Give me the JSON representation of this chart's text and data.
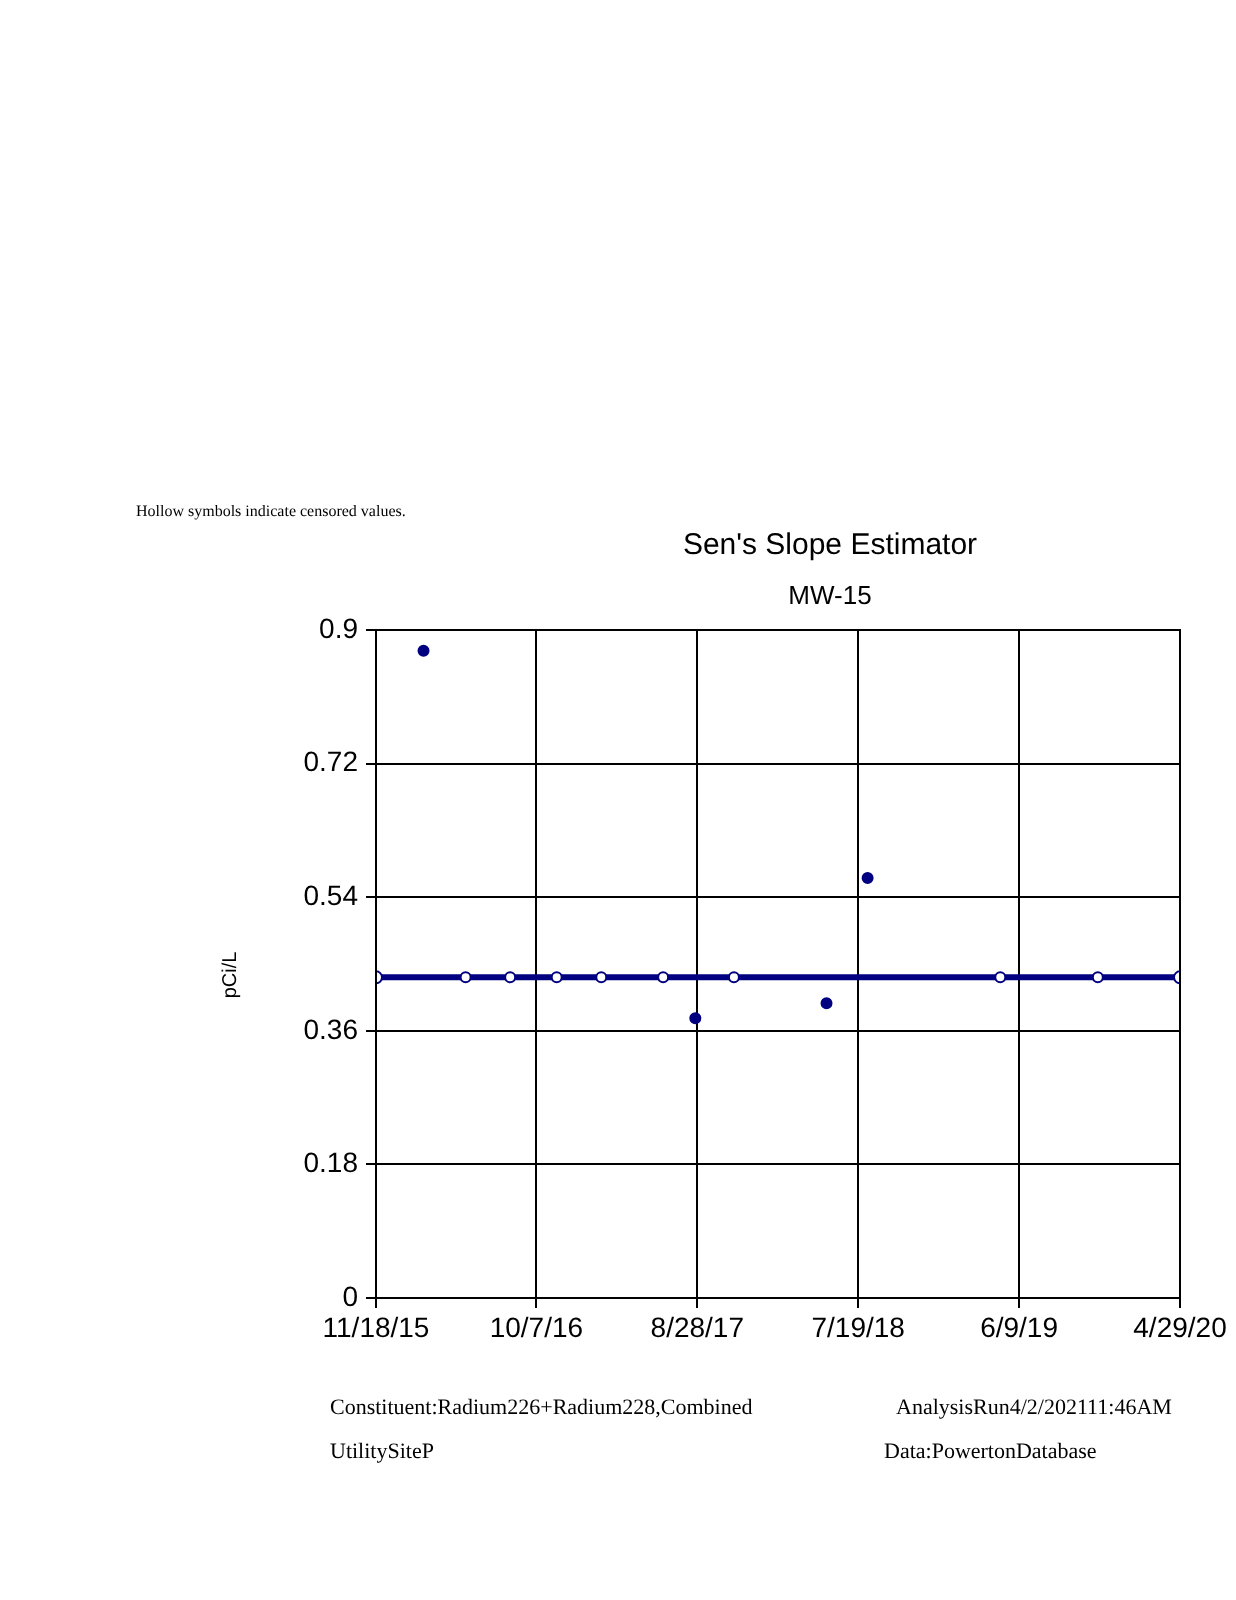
{
  "chart_data": {
    "type": "scatter",
    "title": "Sen's Slope Estimator",
    "subtitle": "MW-15",
    "ylabel": "pCi/L",
    "annotations": [
      "Hollow symbols indicate censored values.",
      "Constituent:Radium226+Radium228,Combined",
      "AnalysisRun4/2/202111:46AM",
      "UtilitySiteP",
      "Data:PowertonDatabase"
    ],
    "xlim": [
      "2015-11-18",
      "2020-04-29"
    ],
    "xticks": [
      {
        "value": "2015-11-18",
        "label": "11/18/15"
      },
      {
        "value": "2016-10-07",
        "label": "10/7/16"
      },
      {
        "value": "2017-08-28",
        "label": "8/28/17"
      },
      {
        "value": "2018-07-19",
        "label": "7/19/18"
      },
      {
        "value": "2019-06-09",
        "label": "6/9/19"
      },
      {
        "value": "2020-04-29",
        "label": "4/29/20"
      }
    ],
    "ylim": [
      0,
      0.9
    ],
    "yticks": [
      0,
      0.18,
      0.36,
      0.54,
      0.72,
      0.9
    ],
    "grid": true,
    "marker": "circle",
    "series": [
      {
        "type": "line",
        "color": "#000080",
        "x": [
          "2015-11-18",
          "2020-04-29"
        ],
        "values": [
          0.432,
          0.432
        ]
      },
      {
        "color": "#000080",
        "x": [
          "2016-02-22",
          "2017-08-24",
          "2018-05-16",
          "2018-08-07"
        ],
        "values": [
          0.872,
          0.377,
          0.397,
          0.566
        ]
      },
      {
        "color": "#ffffff",
        "x": [
          "2016-05-17",
          "2016-08-15",
          "2016-11-17",
          "2017-02-15",
          "2017-06-20",
          "2017-11-10",
          "2019-05-02",
          "2019-11-15"
        ],
        "values": [
          0.432,
          0.432,
          0.432,
          0.432,
          0.432,
          0.432,
          0.432,
          0.432
        ]
      }
    ]
  }
}
